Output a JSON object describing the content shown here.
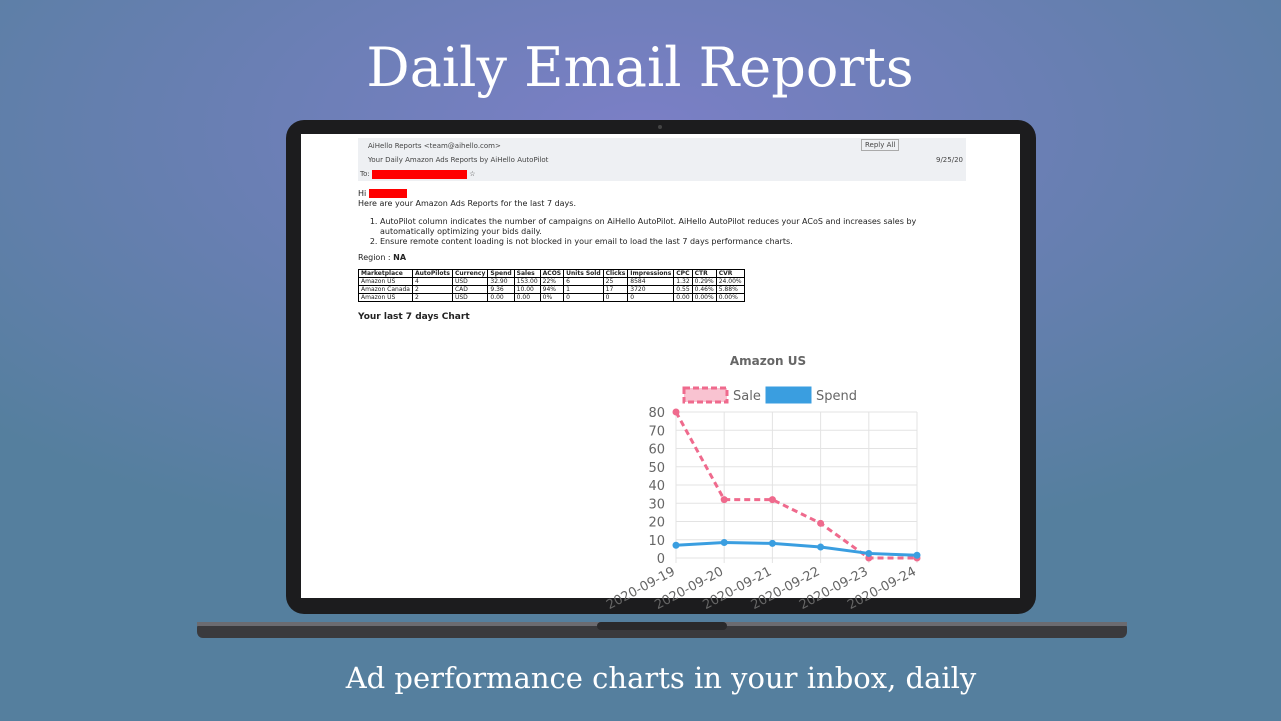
{
  "header": {
    "title": "Daily Email Reports",
    "subtitle": "Ad performance charts in your inbox, daily"
  },
  "email": {
    "from": "AiHello Reports <team@aihello.com>",
    "subject": "Your Daily Amazon Ads Reports by AiHello AutoPilot",
    "to_label": "To:",
    "reply_all": "Reply All",
    "date": "9/25/20",
    "greeting": "Hi",
    "intro": "Here are your Amazon Ads Reports for the last 7 days.",
    "list": [
      "AutoPilot column indicates the number of campaigns on AiHello AutoPilot. AiHello AutoPilot reduces your ACoS and increases sales by automatically optimizing your bids daily.",
      "Ensure remote content loading is not blocked in your email to load the last 7 days performance charts."
    ],
    "region_label": "Region :",
    "region": "NA",
    "table": {
      "header": [
        "Marketplace",
        "AutoPilots",
        "Currency",
        "Spend",
        "Sales",
        "ACOS",
        "Units Sold",
        "Clicks",
        "Impressions",
        "CPC",
        "CTR",
        "CVR"
      ],
      "rows": [
        [
          "Amazon US",
          "4",
          "USD",
          "32.90",
          "153.00",
          "22%",
          "6",
          "25",
          "8584",
          "1.32",
          "0.29%",
          "24.00%"
        ],
        [
          "Amazon Canada",
          "2",
          "CAD",
          "9.36",
          "10.00",
          "94%",
          "1",
          "17",
          "3720",
          "0.55",
          "0.46%",
          "5.88%"
        ],
        [
          "Amazon US",
          "2",
          "USD",
          "0.00",
          "0.00",
          "0%",
          "0",
          "0",
          "0",
          "0.00",
          "0.00%",
          "0.00%"
        ]
      ]
    },
    "chart_heading": "Your last 7 days Chart"
  },
  "chart_data": {
    "type": "line",
    "title": "Amazon US",
    "categories": [
      "2020-09-19",
      "2020-09-20",
      "2020-09-21",
      "2020-09-22",
      "2020-09-23",
      "2020-09-24"
    ],
    "series": [
      {
        "name": "Sale",
        "color": "#ef6a8d",
        "dashed": true,
        "values": [
          80,
          32,
          32,
          19,
          0,
          0
        ]
      },
      {
        "name": "Spend",
        "color": "#3a9ee0",
        "dashed": false,
        "values": [
          7,
          8.5,
          8,
          6,
          2.5,
          1.5
        ]
      }
    ],
    "ylim": [
      0,
      80
    ],
    "yticks": [
      0,
      10,
      20,
      30,
      40,
      50,
      60,
      70,
      80
    ],
    "grid": true
  }
}
